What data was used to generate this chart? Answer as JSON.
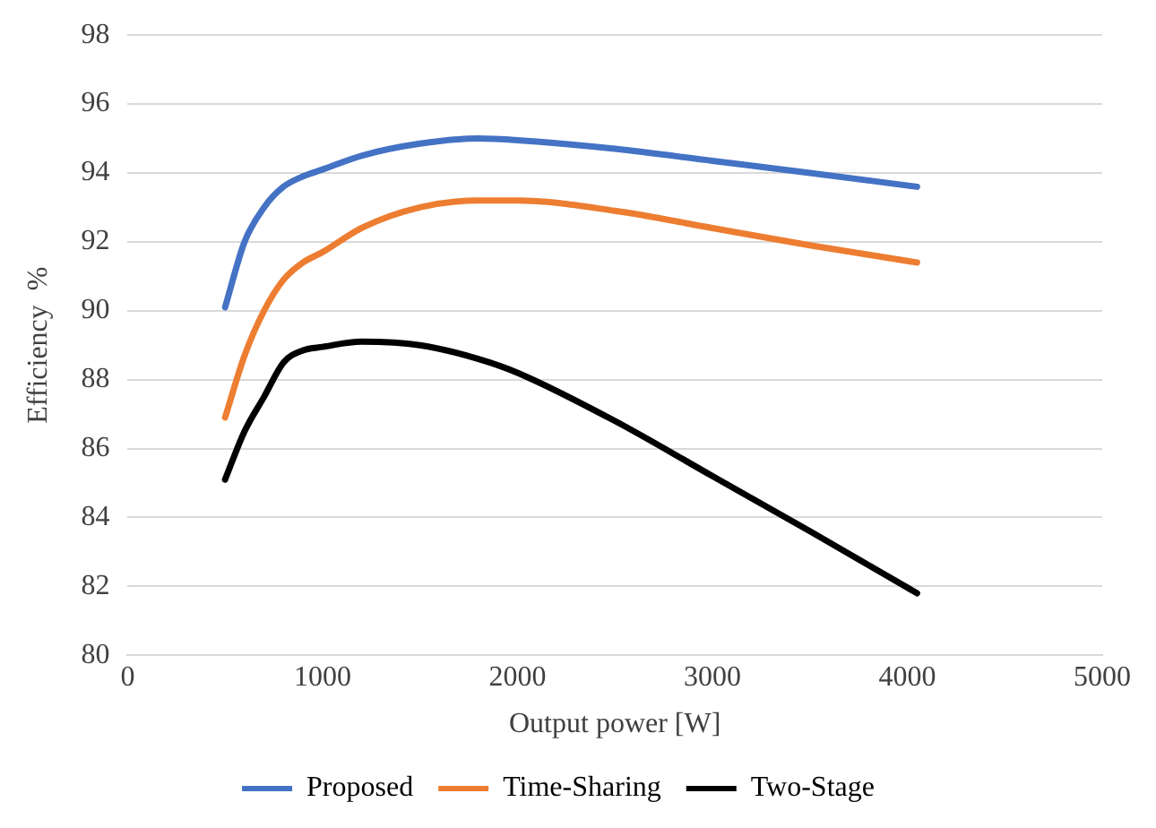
{
  "chart_data": {
    "type": "line",
    "xlabel": "Output power [W]",
    "ylabel": "Efficiency  %",
    "xlim": [
      0,
      5000
    ],
    "xticks": [
      0,
      1000,
      2000,
      3000,
      4000,
      5000
    ],
    "ylim": [
      80,
      98
    ],
    "yticks": [
      80,
      82,
      84,
      86,
      88,
      90,
      92,
      94,
      96,
      98
    ],
    "grid": "y",
    "legend": "bottom",
    "marker": "none",
    "line_style": "solid",
    "x": [
      500,
      600,
      700,
      800,
      900,
      1000,
      1200,
      1500,
      1800,
      2000,
      2500,
      3000,
      3500,
      4050
    ],
    "series": [
      {
        "name": "Proposed",
        "color": "#4472c4",
        "values": [
          90.1,
          92.0,
          93.0,
          93.6,
          93.9,
          94.1,
          94.5,
          94.85,
          95.0,
          94.95,
          94.7,
          94.35,
          94.0,
          93.6
        ]
      },
      {
        "name": "Time-Sharing",
        "color": "#ed7d31",
        "values": [
          86.9,
          88.7,
          90.0,
          90.9,
          91.4,
          91.7,
          92.4,
          93.0,
          93.2,
          93.2,
          92.9,
          92.4,
          91.9,
          91.4
        ]
      },
      {
        "name": "Two-Stage",
        "color": "#000000",
        "values": [
          85.1,
          86.5,
          87.5,
          88.5,
          88.85,
          88.95,
          89.1,
          89.0,
          88.6,
          88.2,
          86.8,
          85.2,
          83.6,
          81.8
        ]
      }
    ]
  }
}
